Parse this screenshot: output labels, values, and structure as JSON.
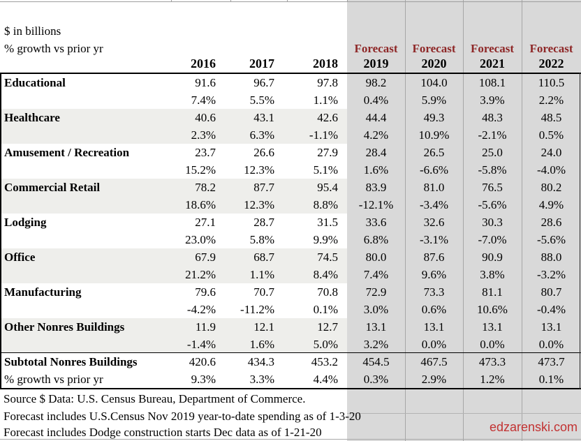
{
  "header": {
    "title_line1": "$ in billions",
    "title_line2": "% growth vs prior yr",
    "forecast_label": "Forecast",
    "actual_years": [
      "2016",
      "2017",
      "2018"
    ],
    "forecast_years": [
      "2019",
      "2020",
      "2021",
      "2022"
    ]
  },
  "rows": [
    {
      "label": "Educational",
      "values": [
        "91.6",
        "96.7",
        "97.8",
        "98.2",
        "104.0",
        "108.1",
        "110.5"
      ],
      "growth": [
        "7.4%",
        "5.5%",
        "1.1%",
        "0.4%",
        "5.9%",
        "3.9%",
        "2.2%"
      ]
    },
    {
      "label": "Healthcare",
      "values": [
        "40.6",
        "43.1",
        "42.6",
        "44.4",
        "49.3",
        "48.3",
        "48.5"
      ],
      "growth": [
        "2.3%",
        "6.3%",
        "-1.1%",
        "4.2%",
        "10.9%",
        "-2.1%",
        "0.5%"
      ]
    },
    {
      "label": "Amusement / Recreation",
      "values": [
        "23.7",
        "26.6",
        "27.9",
        "28.4",
        "26.5",
        "25.0",
        "24.0"
      ],
      "growth": [
        "15.2%",
        "12.3%",
        "5.1%",
        "1.6%",
        "-6.6%",
        "-5.8%",
        "-4.0%"
      ]
    },
    {
      "label": "Commercial Retail",
      "values": [
        "78.2",
        "87.7",
        "95.4",
        "83.9",
        "81.0",
        "76.5",
        "80.2"
      ],
      "growth": [
        "18.6%",
        "12.3%",
        "8.8%",
        "-12.1%",
        "-3.4%",
        "-5.6%",
        "4.9%"
      ]
    },
    {
      "label": "Lodging",
      "values": [
        "27.1",
        "28.7",
        "31.5",
        "33.6",
        "32.6",
        "30.3",
        "28.6"
      ],
      "growth": [
        "23.0%",
        "5.8%",
        "9.9%",
        "6.8%",
        "-3.1%",
        "-7.0%",
        "-5.6%"
      ]
    },
    {
      "label": "Office",
      "values": [
        "67.9",
        "68.7",
        "74.5",
        "80.0",
        "87.6",
        "90.9",
        "88.0"
      ],
      "growth": [
        "21.2%",
        "1.1%",
        "8.4%",
        "7.4%",
        "9.6%",
        "3.8%",
        "-3.2%"
      ]
    },
    {
      "label": "Manufacturing",
      "values": [
        "79.6",
        "70.7",
        "70.8",
        "72.9",
        "73.3",
        "81.1",
        "80.7"
      ],
      "growth": [
        "-4.2%",
        "-11.2%",
        "0.1%",
        "3.0%",
        "0.6%",
        "10.6%",
        "-0.4%"
      ]
    },
    {
      "label": "Other Nonres Buildings",
      "values": [
        "11.9",
        "12.1",
        "12.7",
        "13.1",
        "13.1",
        "13.1",
        "13.1"
      ],
      "growth": [
        "-1.4%",
        "1.6%",
        "5.0%",
        "3.2%",
        "0.0%",
        "0.0%",
        "0.0%"
      ]
    }
  ],
  "subtotal": {
    "label": "Subtotal Nonres Buildings",
    "growth_label": "% growth vs prior yr",
    "values": [
      "420.6",
      "434.3",
      "453.2",
      "454.5",
      "467.5",
      "473.3",
      "473.7"
    ],
    "growth": [
      "9.3%",
      "3.3%",
      "4.4%",
      "0.3%",
      "2.9%",
      "1.2%",
      "0.1%"
    ]
  },
  "footer": {
    "notes": [
      "Source $ Data: U.S. Census Bureau, Department of Commerce.",
      "Forecast includes U.S.Census Nov 2019 year-to-date spending as of 1-3-20",
      "Forecast includes Dodge construction starts Dec data as of 1-21-20"
    ],
    "watermark": "edzarenski.com"
  },
  "colors": {
    "forecast_column_bg": "#d9d9d9",
    "row_band_bg": "#eeeeeb",
    "gridline": "#a6a6a6",
    "forecast_label_red": "#8e2727",
    "watermark_red": "#c23232",
    "border_black": "#000000"
  }
}
